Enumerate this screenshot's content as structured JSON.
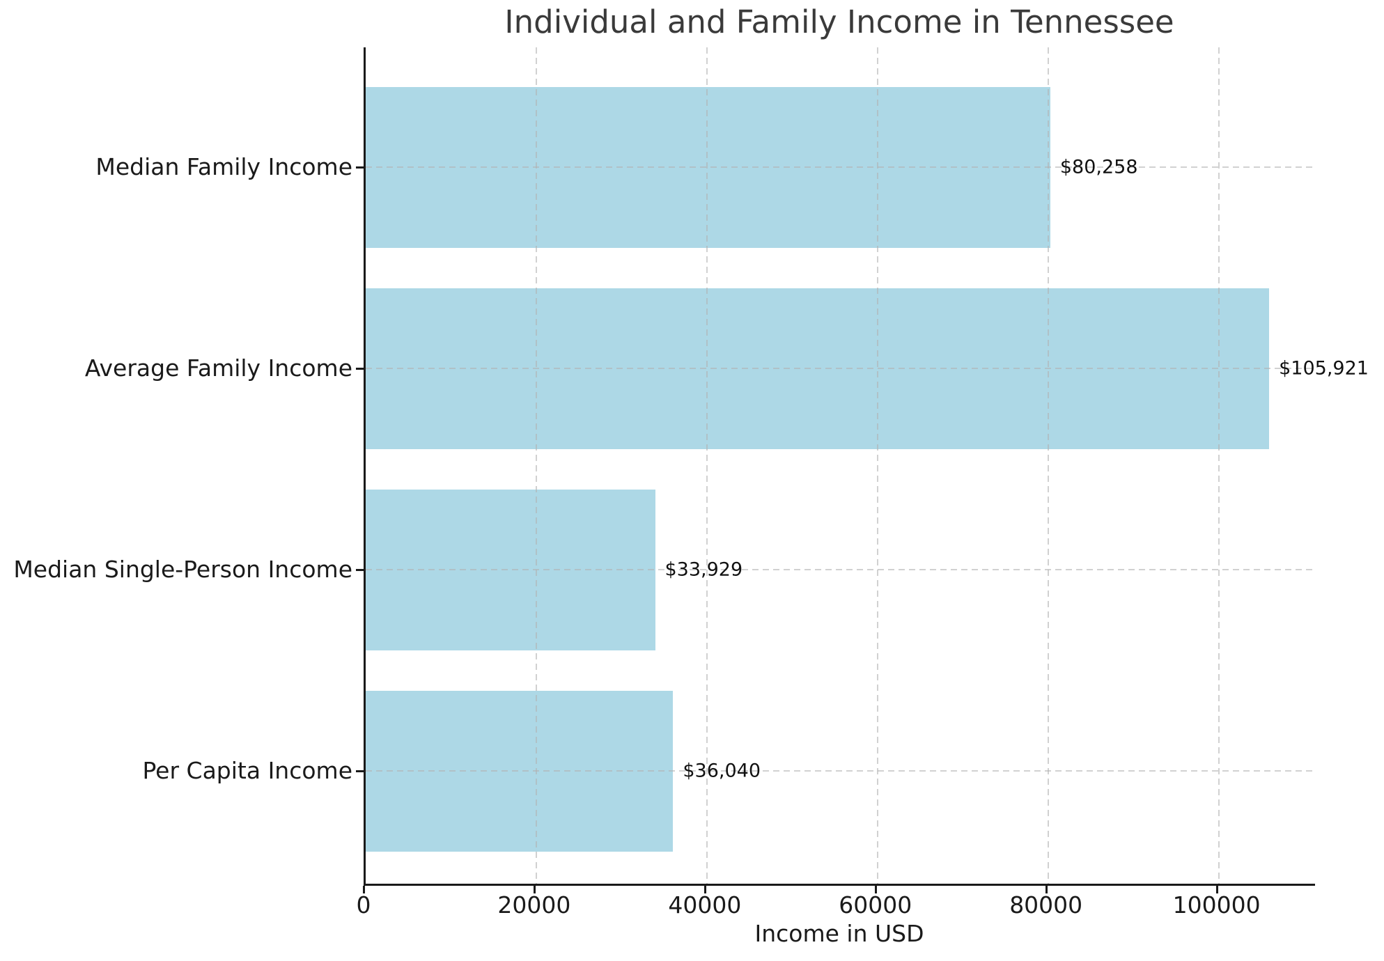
{
  "chart_data": {
    "type": "bar",
    "orientation": "horizontal",
    "title": "Individual and Family Income in Tennessee",
    "xlabel": "Income in USD",
    "ylabel": "",
    "categories": [
      "Median Family Income",
      "Average Family Income",
      "Median Single-Person Income",
      "Per Capita Income"
    ],
    "values": [
      80258,
      105921,
      33929,
      36040
    ],
    "value_labels": [
      "$80,258",
      "$105,921",
      "$33,929",
      "$36,040"
    ],
    "x_ticks": [
      0,
      20000,
      40000,
      60000,
      80000,
      100000
    ],
    "x_tick_labels": [
      "0",
      "20000",
      "40000",
      "60000",
      "80000",
      "100000"
    ],
    "xlim": [
      0,
      111300
    ],
    "grid": "both-axes dashed",
    "legend": "none",
    "colors": {
      "bar": "#ADD8E6",
      "grid": "#c9c9c9",
      "spine": "#1a1a1a",
      "tick_text": "#1a1a1a",
      "title_text": "#3a3a3a",
      "background": "#ffffff"
    }
  }
}
